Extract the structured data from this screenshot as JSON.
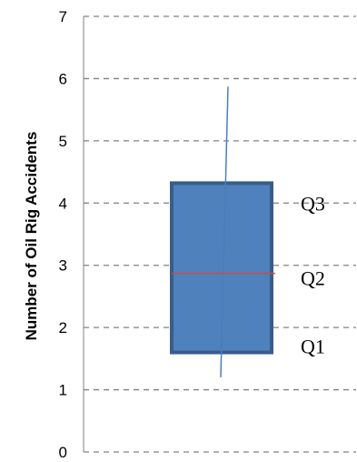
{
  "chart_data": {
    "type": "box",
    "ylabel": "Number of Oil Rig Accidents",
    "xlabel": "",
    "title": "",
    "ylim": [
      0,
      7
    ],
    "yticks": [
      0,
      1,
      2,
      3,
      4,
      5,
      6,
      7
    ],
    "grid": "horizontal-dashed",
    "box": {
      "whisker_low": 1.2,
      "q1": 1.6,
      "median": 2.87,
      "q3": 4.32,
      "whisker_high": 5.87
    },
    "annotations": [
      {
        "text": "Q3",
        "y": 4.0
      },
      {
        "text": "Q2",
        "y": 2.8
      },
      {
        "text": "Q1",
        "y": 1.7
      }
    ],
    "colors": {
      "box_fill": "#4f81bd",
      "box_edge": "#385d8a",
      "median": "#c0504d",
      "whisker": "#4a7ebb",
      "grid": "#808080"
    }
  }
}
